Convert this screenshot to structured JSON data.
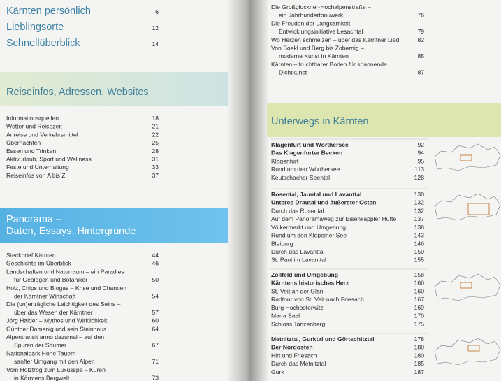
{
  "left_page": {
    "intro": [
      {
        "title": "Kärnten persönlich",
        "page": 6
      },
      {
        "title": "Lieblingsorte",
        "page": 12
      },
      {
        "title": "Schnellüberblick",
        "page": 14
      }
    ],
    "sections": [
      {
        "heading": [
          "Reiseinfos, Adressen, Websites"
        ],
        "entries": [
          {
            "lines": [
              "Informationsquellen"
            ],
            "page": 18
          },
          {
            "lines": [
              "Wetter und Reisezeit"
            ],
            "page": 21
          },
          {
            "lines": [
              "Anreise und Verkehrsmittel"
            ],
            "page": 22
          },
          {
            "lines": [
              "Übernachten"
            ],
            "page": 25
          },
          {
            "lines": [
              "Essen und Trinken"
            ],
            "page": 28
          },
          {
            "lines": [
              "Aktivurlaub, Sport und Wellness"
            ],
            "page": 31
          },
          {
            "lines": [
              "Feste und Unterhaltung"
            ],
            "page": 33
          },
          {
            "lines": [
              "Reiseinfos von A bis Z"
            ],
            "page": 37
          }
        ]
      },
      {
        "heading": [
          "Panorama –",
          "Daten, Essays, Hintergründe"
        ],
        "entries": [
          {
            "lines": [
              "Steckbrief Kärnten"
            ],
            "page": 44
          },
          {
            "lines": [
              "Geschichte im Überblick"
            ],
            "page": 46
          },
          {
            "lines": [
              "Landschaften und Naturraum – ein Paradies",
              "für Geologen und Botaniker"
            ],
            "page": 50
          },
          {
            "lines": [
              "Holz, Chips und Biogas – Krise und Chancen",
              "der Kärntner Wirtschaft"
            ],
            "page": 54
          },
          {
            "lines": [
              "Die (un)erträgliche Leichtigkeit des Seins –",
              "über das Wesen der Kärntner"
            ],
            "page": 57
          },
          {
            "lines": [
              "Jörg Haider – Mythos und Wirklichkeit"
            ],
            "page": 60
          },
          {
            "lines": [
              "Günther Domenig und sein Steinhaus"
            ],
            "page": 64
          },
          {
            "lines": [
              "Alpentransit anno dazumal – auf den",
              "Spuren der Säumer"
            ],
            "page": 67
          },
          {
            "lines": [
              "Nationalpark Hohe Tauern –",
              "sanfter Umgang mit den Alpen"
            ],
            "page": 71
          },
          {
            "lines": [
              "Vom Holztrog zum Luxusspa – Kuren",
              "in Kärntens Bergwelt"
            ],
            "page": 73
          }
        ]
      }
    ]
  },
  "right_page": {
    "entries": [
      {
        "lines": [
          "Die Großglockner-Hochalpenstraße –",
          "ein Jahrhundertbauwerk"
        ],
        "page": 76
      },
      {
        "lines": [
          "Die Freuden der Langsamkeit –",
          "Entwicklungsinitiative Lesachtal"
        ],
        "page": 79
      },
      {
        "lines": [
          "Wo Herzen schmelzen – über das Kärntner Lied"
        ],
        "page": 82
      },
      {
        "lines": [
          "Von Boekl und Berg bis Zobernig –",
          "moderne Kunst in Kärnten"
        ],
        "page": 85
      },
      {
        "lines": [
          "Kärnten – fruchtbarer Boden für spannende",
          "Dichtkunst"
        ],
        "page": 87
      }
    ],
    "section": {
      "heading": [
        "Unterwegs in Kärnten"
      ],
      "regions": [
        {
          "title": "Klagenfurt und Wörthersee",
          "page": 92,
          "subtitle": "Das Klagenfurter Becken",
          "subtitle_page": 94,
          "entries": [
            {
              "title": "Klagenfurt",
              "page": 95
            },
            {
              "title": "Rund um den Wörthersee",
              "page": 113
            },
            {
              "title": "Keutschacher Seental",
              "page": 128
            }
          ]
        },
        {
          "title": "Rosental, Jauntal und Lavanttal",
          "page": 130,
          "subtitle": "Unteres Drautal und äußerster Osten",
          "subtitle_page": 132,
          "entries": [
            {
              "title": "Durch das Rosental",
              "page": 132
            },
            {
              "title": "Auf dem Panoramaweg zur Eisenkappler Hütte",
              "page": 137
            },
            {
              "title": "Völkermarkt und Umgebung",
              "page": 138
            },
            {
              "title": "Rund um den Klopeiner See",
              "page": 143
            },
            {
              "title": "Bleiburg",
              "page": 146
            },
            {
              "title": "Durch das Lavanttal",
              "page": 150
            },
            {
              "title": "St. Paul im Lavanttal",
              "page": 155
            }
          ]
        },
        {
          "title": "Zollfeld und Umgebung",
          "page": 158,
          "subtitle": "Kärntens historisches Herz",
          "subtitle_page": 160,
          "entries": [
            {
              "title": "St. Veit an der Glan",
              "page": 160
            },
            {
              "title": "Radtour von St. Veit nach Friesach",
              "page": 167
            },
            {
              "title": "Burg Hochosterwitz",
              "page": 169
            },
            {
              "title": "Maria Saal",
              "page": 170
            },
            {
              "title": "Schloss Tanzenberg",
              "page": 175
            }
          ]
        },
        {
          "title": "Metnitztal, Gurktal und Görtschitztal",
          "page": 178,
          "subtitle": "Der Nordosten",
          "subtitle_page": 180,
          "entries": [
            {
              "title": "Hirt und Friesach",
              "page": 180
            },
            {
              "title": "Durch das Metnitztal",
              "page": 185
            },
            {
              "title": "Gurk",
              "page": 187
            }
          ]
        }
      ]
    }
  }
}
